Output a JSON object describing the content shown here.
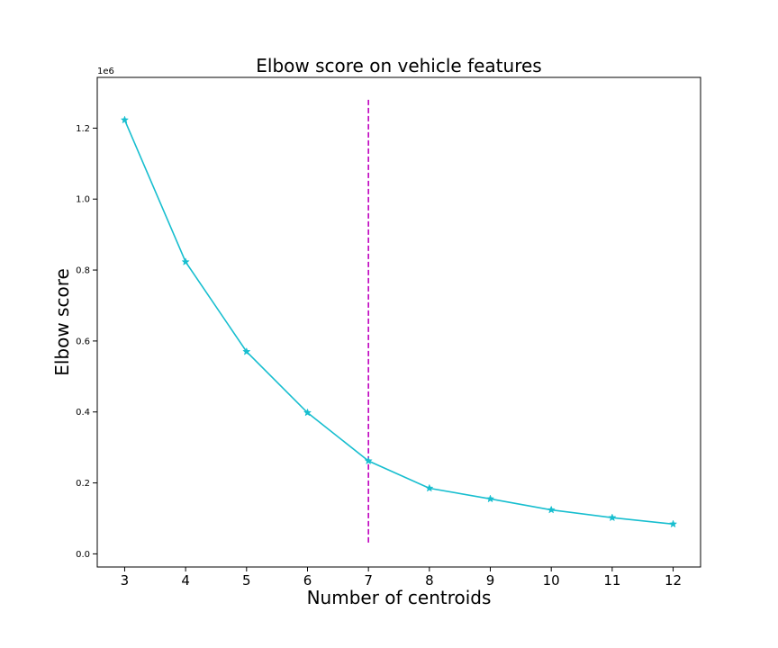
{
  "chart_data": {
    "type": "line",
    "title": "Elbow score on vehicle features",
    "xlabel": "Number of centroids",
    "ylabel": "Elbow score",
    "y_offset_label": "1e6",
    "x": [
      3,
      4,
      5,
      6,
      7,
      8,
      9,
      10,
      11,
      12
    ],
    "x_tick_labels": [
      "3",
      "4",
      "5",
      "6",
      "7",
      "8",
      "9",
      "10",
      "11",
      "12"
    ],
    "y_ticks": [
      0.0,
      0.2,
      0.4,
      0.6,
      0.8,
      1.0,
      1.2
    ],
    "y_tick_labels": [
      "0.0",
      "0.2",
      "0.4",
      "0.6",
      "0.8",
      "1.0",
      "1.2"
    ],
    "xlim": [
      2.55,
      12.45
    ],
    "ylim": [
      -37000,
      1343000
    ],
    "grid": false,
    "series": [
      {
        "values": [
          1223000,
          823000,
          570000,
          398000,
          262000,
          185000,
          155000,
          124000,
          102000,
          84000
        ],
        "color": "#17becf",
        "marker": "star",
        "line_style": "solid"
      }
    ],
    "vline": {
      "x": 7,
      "y_range": [
        28000,
        1280000
      ],
      "color": "#bf00bf",
      "line_style": "dashed"
    }
  }
}
